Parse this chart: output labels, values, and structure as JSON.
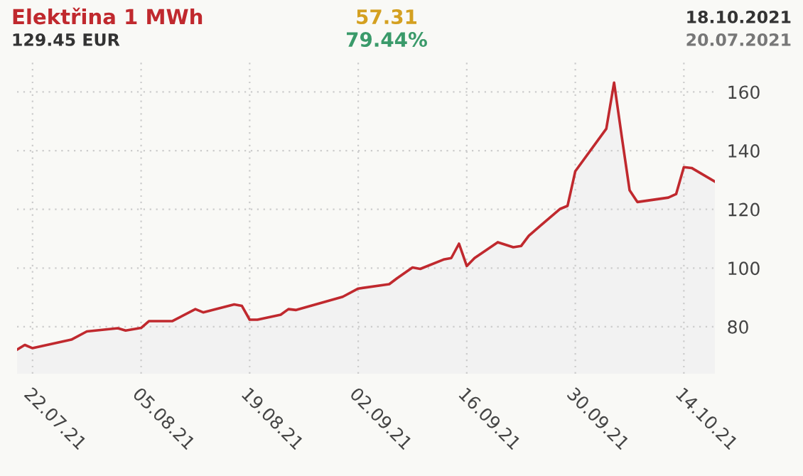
{
  "chart_data": {
    "type": "area",
    "title": "Elektřina 1 MWh",
    "annotations": [
      "129.45 EUR",
      "57.31",
      "79.44%",
      "18.10.2021",
      "20.07.2021"
    ],
    "x": [
      "2021-07-20",
      "2021-07-21",
      "2021-07-22",
      "2021-07-27",
      "2021-07-29",
      "2021-08-02",
      "2021-08-03",
      "2021-08-05",
      "2021-08-06",
      "2021-08-09",
      "2021-08-12",
      "2021-08-13",
      "2021-08-17",
      "2021-08-18",
      "2021-08-19",
      "2021-08-20",
      "2021-08-23",
      "2021-08-24",
      "2021-08-25",
      "2021-08-31",
      "2021-09-02",
      "2021-09-06",
      "2021-09-07",
      "2021-09-09",
      "2021-09-10",
      "2021-09-13",
      "2021-09-14",
      "2021-09-15",
      "2021-09-16",
      "2021-09-17",
      "2021-09-20",
      "2021-09-22",
      "2021-09-23",
      "2021-09-24",
      "2021-09-28",
      "2021-09-29",
      "2021-09-30",
      "2021-10-04",
      "2021-10-05",
      "2021-10-06",
      "2021-10-07",
      "2021-10-08",
      "2021-10-12",
      "2021-10-13",
      "2021-10-14",
      "2021-10-15",
      "2021-10-18"
    ],
    "series": [
      {
        "color": "#c0292e",
        "values": [
          72.2,
          73.8,
          72.7,
          75.6,
          78.4,
          79.5,
          78.7,
          79.6,
          81.9,
          81.9,
          86.0,
          84.9,
          87.6,
          87.1,
          82.4,
          82.4,
          84.1,
          86.0,
          85.7,
          90.2,
          93.0,
          94.5,
          96.5,
          100.2,
          99.7,
          102.9,
          103.4,
          108.3,
          100.7,
          103.4,
          108.8,
          107.1,
          107.5,
          111.0,
          120.1,
          121.2,
          133.0,
          147.5,
          163.2,
          144.6,
          126.5,
          122.5,
          124.0,
          125.2,
          134.4,
          134.1,
          129.45
        ]
      }
    ],
    "xlim": [
      "2021-07-20",
      "2021-10-18"
    ],
    "xticks": [
      {
        "value": "2021-07-22",
        "label": "22.07.21"
      },
      {
        "value": "2021-08-05",
        "label": "05.08.21"
      },
      {
        "value": "2021-08-19",
        "label": "19.08.21"
      },
      {
        "value": "2021-09-02",
        "label": "02.09.21"
      },
      {
        "value": "2021-09-16",
        "label": "16.09.21"
      },
      {
        "value": "2021-09-30",
        "label": "30.09.21"
      },
      {
        "value": "2021-10-14",
        "label": "14.10.21"
      }
    ],
    "ylim": [
      64,
      171
    ],
    "yticks": [
      80,
      100,
      120,
      140,
      160
    ],
    "grid": true
  }
}
